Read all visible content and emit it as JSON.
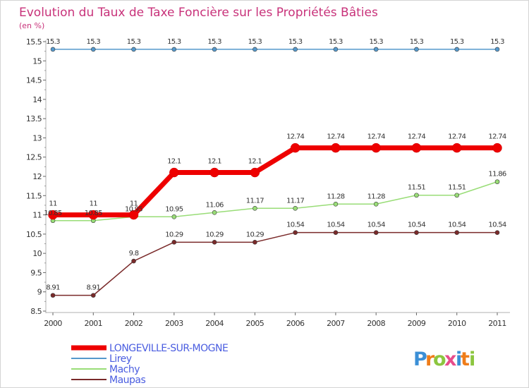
{
  "chart_data": {
    "type": "line",
    "title": "Evolution du Taux de Taxe Foncière sur les Propriétés Bâties",
    "ylabel": "(en %)",
    "xlabel": "",
    "ylim": [
      8.5,
      15.5
    ],
    "yticks": [
      "8.5",
      "9",
      "9.5",
      "10",
      "10.5",
      "11",
      "11.5",
      "12",
      "12.5",
      "13",
      "13.5",
      "14",
      "14.5",
      "15",
      "15.5"
    ],
    "categories": [
      "2000",
      "2001",
      "2002",
      "2003",
      "2004",
      "2005",
      "2006",
      "2007",
      "2008",
      "2009",
      "2010",
      "2011"
    ],
    "grid": false,
    "legend_position": "bottom-left",
    "series": [
      {
        "name": "LONGEVILLE-SUR-MOGNE",
        "color": "#ee0000",
        "values": [
          11,
          11,
          11,
          12.1,
          12.1,
          12.1,
          12.74,
          12.74,
          12.74,
          12.74,
          12.74,
          12.74
        ],
        "labels": [
          "11",
          "11",
          "11",
          "12.1",
          "12.1",
          "12.1",
          "12.74",
          "12.74",
          "12.74",
          "12.74",
          "12.74",
          "12.74"
        ]
      },
      {
        "name": "Lirey",
        "color": "#5599cc",
        "values": [
          15.3,
          15.3,
          15.3,
          15.3,
          15.3,
          15.3,
          15.3,
          15.3,
          15.3,
          15.3,
          15.3,
          15.3
        ],
        "labels": [
          "15.3",
          "15.3",
          "15.3",
          "15.3",
          "15.3",
          "15.3",
          "15.3",
          "15.3",
          "15.3",
          "15.3",
          "15.3",
          "15.3"
        ]
      },
      {
        "name": "Machy",
        "color": "#99dd77",
        "values": [
          10.85,
          10.85,
          10.95,
          10.95,
          11.06,
          11.17,
          11.17,
          11.28,
          11.28,
          11.51,
          11.51,
          11.86
        ],
        "labels": [
          "10.85",
          "10.85",
          "10.95",
          "10.95",
          "11.06",
          "11.17",
          "11.17",
          "11.28",
          "11.28",
          "11.51",
          "11.51",
          "11.86"
        ]
      },
      {
        "name": "Maupas",
        "color": "#7a2a2a",
        "values": [
          8.91,
          8.91,
          9.8,
          10.29,
          10.29,
          10.29,
          10.54,
          10.54,
          10.54,
          10.54,
          10.54,
          10.54
        ],
        "labels": [
          "8.91",
          "8.91",
          "9.8",
          "10.29",
          "10.29",
          "10.29",
          "10.54",
          "10.54",
          "10.54",
          "10.54",
          "10.54",
          "10.54"
        ]
      }
    ]
  },
  "logo": {
    "letters": [
      "P",
      "r",
      "o",
      "x",
      "i",
      "t",
      "i"
    ],
    "colors": [
      "#3b8fd6",
      "#ef7d1a",
      "#8cc63f",
      "#e84c8b",
      "#3b8fd6",
      "#ef7d1a",
      "#8cc63f"
    ]
  }
}
